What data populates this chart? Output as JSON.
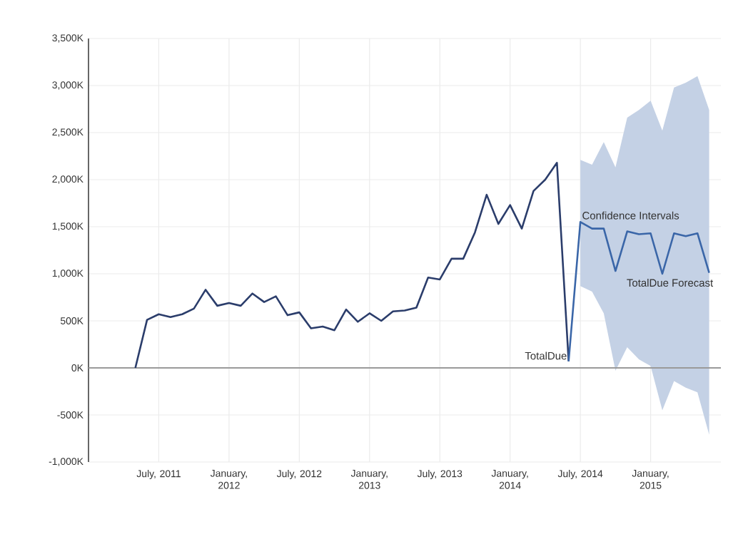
{
  "chart_data": {
    "type": "line",
    "x": [
      "2011-05",
      "2011-06",
      "2011-07",
      "2011-08",
      "2011-09",
      "2011-10",
      "2011-11",
      "2011-12",
      "2012-01",
      "2012-02",
      "2012-03",
      "2012-04",
      "2012-05",
      "2012-06",
      "2012-07",
      "2012-08",
      "2012-09",
      "2012-10",
      "2012-11",
      "2012-12",
      "2013-01",
      "2013-02",
      "2013-03",
      "2013-04",
      "2013-05",
      "2013-06",
      "2013-07",
      "2013-08",
      "2013-09",
      "2013-10",
      "2013-11",
      "2013-12",
      "2014-01",
      "2014-02",
      "2014-03",
      "2014-04",
      "2014-05",
      "2014-06"
    ],
    "series": [
      {
        "name": "TotalDue",
        "color": "#2b3d6b",
        "values": [
          0,
          510,
          570,
          540,
          570,
          630,
          830,
          660,
          690,
          660,
          790,
          700,
          760,
          560,
          590,
          420,
          440,
          400,
          620,
          490,
          580,
          500,
          600,
          610,
          640,
          960,
          940,
          1160,
          1160,
          1440,
          1840,
          1530,
          1730,
          1480,
          1880,
          2000,
          2180,
          70
        ]
      },
      {
        "name": "TotalDue Forecast",
        "color": "#3a66a8",
        "x": [
          "2014-06",
          "2014-07",
          "2014-08",
          "2014-09",
          "2014-10",
          "2014-11",
          "2014-12",
          "2015-01",
          "2015-02",
          "2015-03",
          "2015-04",
          "2015-05",
          "2015-06"
        ],
        "values": [
          70,
          1550,
          1480,
          1480,
          1030,
          1450,
          1420,
          1430,
          1000,
          1430,
          1400,
          1430,
          1010
        ],
        "lower": [
          null,
          870,
          810,
          580,
          -30,
          220,
          90,
          20,
          -450,
          -140,
          -210,
          -260,
          -710
        ],
        "upper": [
          null,
          2210,
          2160,
          2400,
          2130,
          2660,
          2740,
          2840,
          2520,
          2980,
          3030,
          3100,
          2740
        ]
      }
    ],
    "xlim": [
      "2011-01",
      "2015-07"
    ],
    "xticks": [
      {
        "value": "2011-07",
        "label": "July, 2011"
      },
      {
        "value": "2012-01",
        "label": "January, 2012"
      },
      {
        "value": "2012-07",
        "label": "July, 2012"
      },
      {
        "value": "2013-01",
        "label": "January, 2013"
      },
      {
        "value": "2013-07",
        "label": "July, 2013"
      },
      {
        "value": "2014-01",
        "label": "January, 2014"
      },
      {
        "value": "2014-07",
        "label": "July, 2014"
      },
      {
        "value": "2015-01",
        "label": "January, 2015"
      }
    ],
    "ylim": [
      -1000,
      3500
    ],
    "yticks": [
      {
        "value": -1000,
        "label": "-1,000K"
      },
      {
        "value": -500,
        "label": "-500K"
      },
      {
        "value": 0,
        "label": "0K"
      },
      {
        "value": 500,
        "label": "500K"
      },
      {
        "value": 1000,
        "label": "1,000K"
      },
      {
        "value": 1500,
        "label": "1,500K"
      },
      {
        "value": 2000,
        "label": "2,000K"
      },
      {
        "value": 2500,
        "label": "2,500K"
      },
      {
        "value": 3000,
        "label": "3,000K"
      },
      {
        "value": 3500,
        "label": "3,500K"
      }
    ],
    "ref_lines": [
      {
        "axis": "y",
        "value": 0,
        "color": "#9a9a9a"
      }
    ],
    "annotations": [
      {
        "text": "Confidence Intervals",
        "x": "2014-07",
        "y": 1620
      }
    ],
    "grid": true,
    "marker": "none",
    "line_style": "solid"
  }
}
